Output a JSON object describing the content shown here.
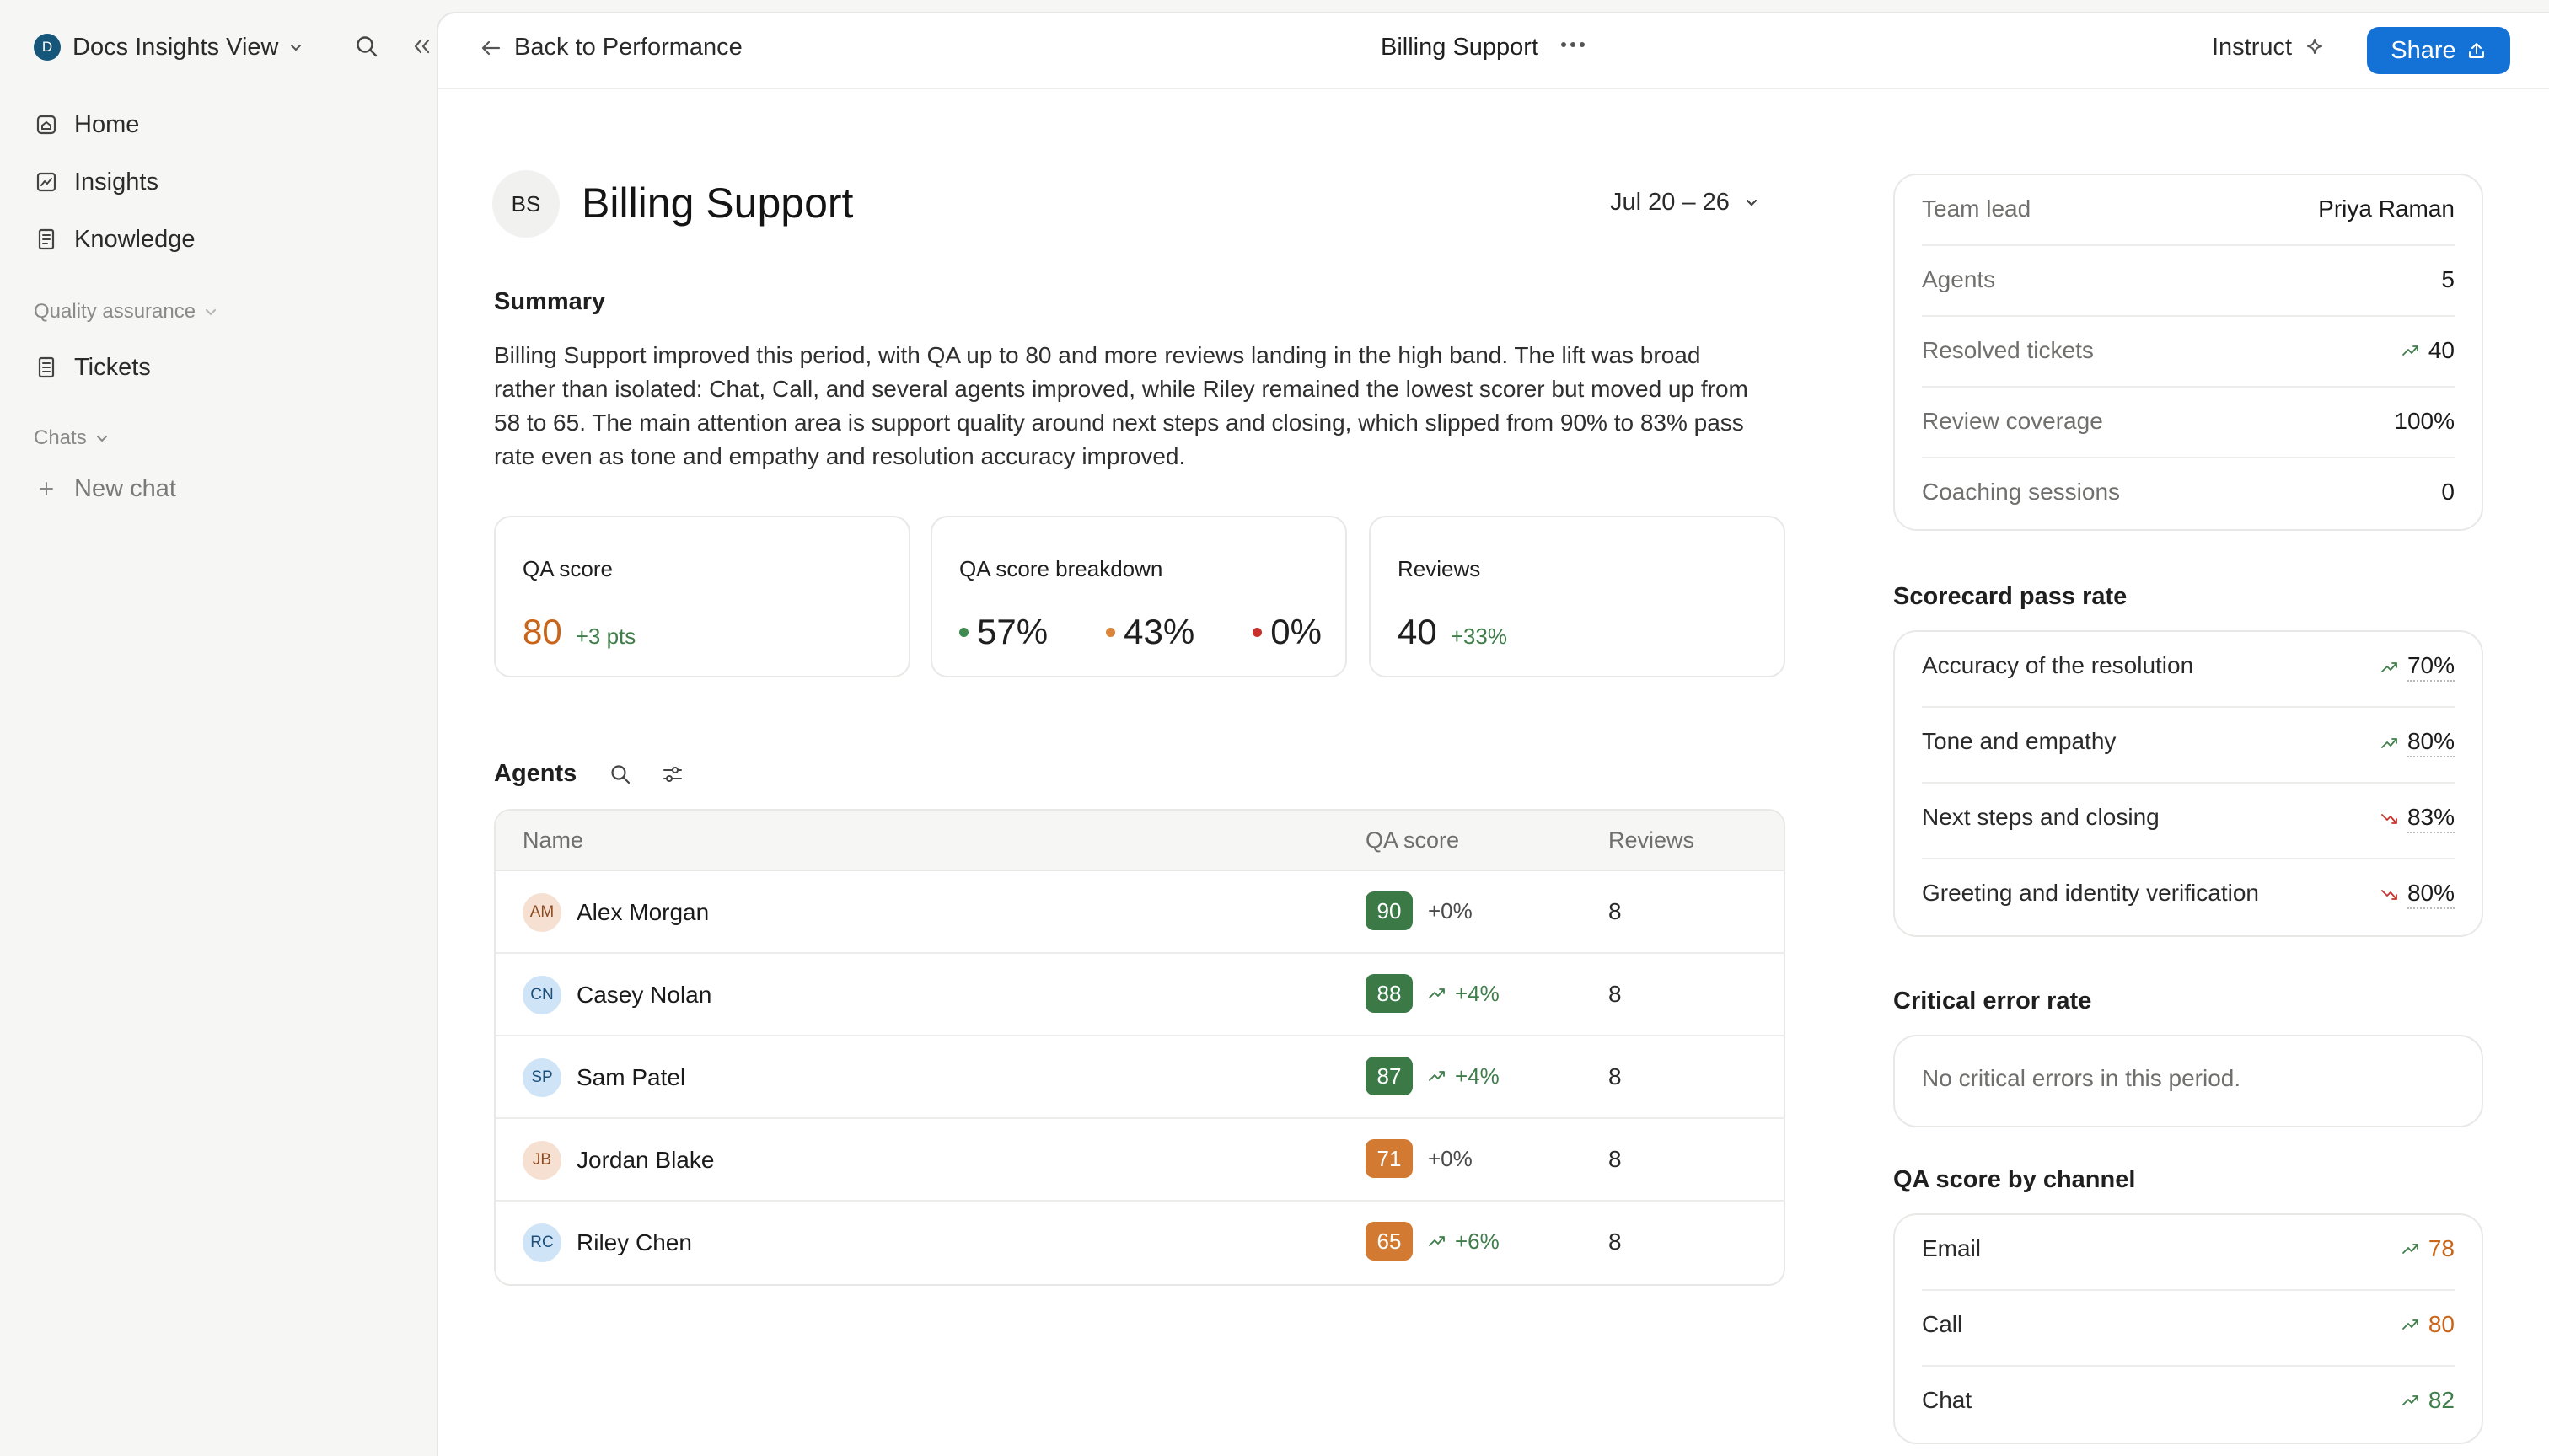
{
  "sidebar": {
    "workspace_initial": "D",
    "workspace_name": "Docs Insights View",
    "nav": [
      {
        "label": "Home",
        "icon": "home-icon"
      },
      {
        "label": "Insights",
        "icon": "chart-icon"
      },
      {
        "label": "Knowledge",
        "icon": "book-icon"
      }
    ],
    "qa_section_label": "Quality assurance",
    "qa_items": [
      {
        "label": "Tickets",
        "icon": "document-icon"
      }
    ],
    "chats_section_label": "Chats",
    "new_chat_label": "New chat"
  },
  "topbar": {
    "back_label": "Back to Performance",
    "title": "Billing Support",
    "instruct_label": "Instruct",
    "share_label": "Share"
  },
  "header": {
    "avatar_initials": "BS",
    "title": "Billing Support",
    "date_range": "Jul 20 – 26"
  },
  "summary": {
    "heading": "Summary",
    "text": "Billing Support improved this period, with QA up to 80 and more reviews landing in the high band. The lift was broad rather than isolated: Chat, Call, and several agents improved, while Riley remained the lowest scorer but moved up from 58 to 65. The main attention area is support quality around next steps and closing, which slipped from 90% to 83% pass rate even as tone and empathy and resolution accuracy improved."
  },
  "metrics": {
    "qa_score": {
      "label": "QA score",
      "value": "80",
      "delta": "+3 pts",
      "color": "#c8651b"
    },
    "breakdown": {
      "label": "QA score breakdown",
      "items": [
        {
          "value": "57%",
          "color": "#3f8a4e"
        },
        {
          "value": "43%",
          "color": "#d9843a"
        },
        {
          "value": "0%",
          "color": "#c9302c"
        }
      ]
    },
    "reviews": {
      "label": "Reviews",
      "value": "40",
      "delta": "+33%"
    }
  },
  "agents": {
    "heading": "Agents",
    "columns": {
      "name": "Name",
      "qa": "QA score",
      "reviews": "Reviews"
    },
    "rows": [
      {
        "initials": "AM",
        "name": "Alex Morgan",
        "score": "90",
        "delta": "+0%",
        "trend": "flat",
        "reviews": "8",
        "badge_color": "#3b7a47",
        "avatar_bg": "#f6e0d2",
        "avatar_fg": "#8a4a22"
      },
      {
        "initials": "CN",
        "name": "Casey Nolan",
        "score": "88",
        "delta": "+4%",
        "trend": "up",
        "reviews": "8",
        "badge_color": "#3b7a47",
        "avatar_bg": "#cfe4f6",
        "avatar_fg": "#1d4f7a"
      },
      {
        "initials": "SP",
        "name": "Sam Patel",
        "score": "87",
        "delta": "+4%",
        "trend": "up",
        "reviews": "8",
        "badge_color": "#3b7a47",
        "avatar_bg": "#cfe4f6",
        "avatar_fg": "#1d4f7a"
      },
      {
        "initials": "JB",
        "name": "Jordan Blake",
        "score": "71",
        "delta": "+0%",
        "trend": "flat",
        "reviews": "8",
        "badge_color": "#d27a32",
        "avatar_bg": "#f6e0d2",
        "avatar_fg": "#8a4a22"
      },
      {
        "initials": "RC",
        "name": "Riley Chen",
        "score": "65",
        "delta": "+6%",
        "trend": "up",
        "reviews": "8",
        "badge_color": "#d27a32",
        "avatar_bg": "#cfe4f6",
        "avatar_fg": "#1d4f7a"
      }
    ]
  },
  "team_info": [
    {
      "label": "Team lead",
      "value": "Priya Raman",
      "trend": ""
    },
    {
      "label": "Agents",
      "value": "5",
      "trend": ""
    },
    {
      "label": "Resolved tickets",
      "value": "40",
      "trend": "up"
    },
    {
      "label": "Review coverage",
      "value": "100%",
      "trend": ""
    },
    {
      "label": "Coaching sessions",
      "value": "0",
      "trend": ""
    }
  ],
  "scorecard": {
    "heading": "Scorecard pass rate",
    "items": [
      {
        "label": "Accuracy of the resolution",
        "value": "70%",
        "trend": "up"
      },
      {
        "label": "Tone and empathy",
        "value": "80%",
        "trend": "up"
      },
      {
        "label": "Next steps and closing",
        "value": "83%",
        "trend": "down"
      },
      {
        "label": "Greeting and identity verification",
        "value": "80%",
        "trend": "down"
      }
    ]
  },
  "critical": {
    "heading": "Critical error rate",
    "text": "No critical errors in this period."
  },
  "channels": {
    "heading": "QA score by channel",
    "items": [
      {
        "label": "Email",
        "value": "78",
        "color": "#c8651b"
      },
      {
        "label": "Call",
        "value": "80",
        "color": "#c8651b"
      },
      {
        "label": "Chat",
        "value": "82",
        "color": "#3f7d4a"
      }
    ]
  },
  "colors": {
    "accent": "#1472d6",
    "positive": "#3f7d4a",
    "negative": "#c9302c",
    "warning": "#c8651b"
  }
}
